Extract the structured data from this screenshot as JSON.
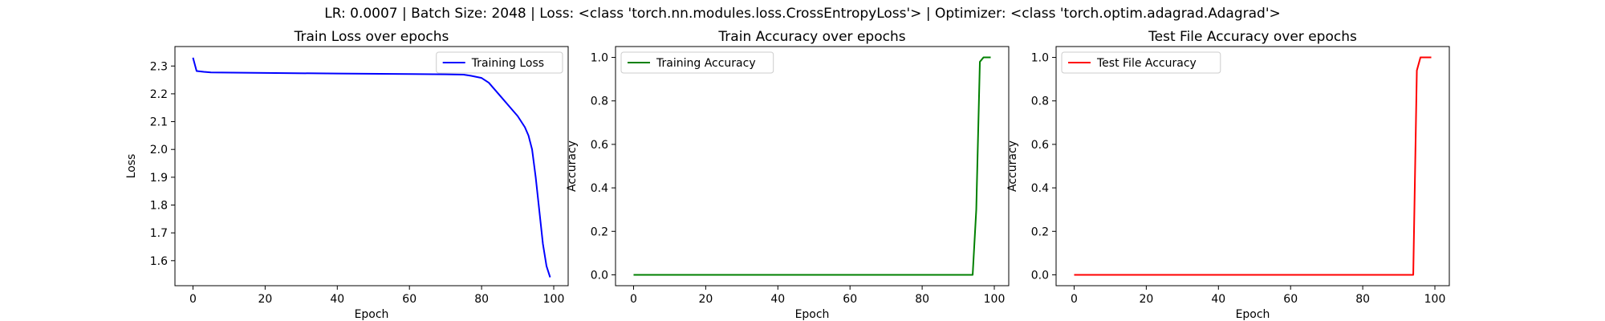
{
  "figure": {
    "suptitle": "LR: 0.0007 | Batch Size: 2048 | Loss: <class 'torch.nn.modules.loss.CrossEntropyLoss'> | Optimizer: <class 'torch.optim.adagrad.Adagrad'>"
  },
  "chart_data": [
    {
      "type": "line",
      "title": "Train Loss over epochs",
      "xlabel": "Epoch",
      "ylabel": "Loss",
      "xlim": [
        -5,
        104
      ],
      "ylim": [
        1.51,
        2.37
      ],
      "xticks": [
        0,
        20,
        40,
        60,
        80,
        100
      ],
      "yticks": [
        1.6,
        1.7,
        1.8,
        1.9,
        2.0,
        2.1,
        2.2,
        2.3
      ],
      "grid": false,
      "legend": "upper right",
      "series": [
        {
          "name": "Training Loss",
          "color": "#0000ff",
          "points": [
            [
              0,
              2.33
            ],
            [
              1,
              2.282
            ],
            [
              3,
              2.279
            ],
            [
              5,
              2.277
            ],
            [
              20,
              2.275
            ],
            [
              40,
              2.273
            ],
            [
              60,
              2.271
            ],
            [
              70,
              2.27
            ],
            [
              75,
              2.269
            ],
            [
              77,
              2.265
            ],
            [
              80,
              2.257
            ],
            [
              82,
              2.24
            ],
            [
              84,
              2.21
            ],
            [
              86,
              2.18
            ],
            [
              88,
              2.15
            ],
            [
              90,
              2.12
            ],
            [
              92,
              2.08
            ],
            [
              93,
              2.05
            ],
            [
              94,
              2.0
            ],
            [
              95,
              1.9
            ],
            [
              96,
              1.78
            ],
            [
              97,
              1.66
            ],
            [
              98,
              1.58
            ],
            [
              99,
              1.54
            ]
          ]
        }
      ]
    },
    {
      "type": "line",
      "title": "Train Accuracy over epochs",
      "xlabel": "Epoch",
      "ylabel": "Accuracy",
      "xlim": [
        -5,
        104
      ],
      "ylim": [
        -0.05,
        1.05
      ],
      "xticks": [
        0,
        20,
        40,
        60,
        80,
        100
      ],
      "yticks": [
        0.0,
        0.2,
        0.4,
        0.6,
        0.8,
        1.0
      ],
      "grid": false,
      "legend": "upper left",
      "series": [
        {
          "name": "Training Accuracy",
          "color": "#008000",
          "points": [
            [
              0,
              0.0
            ],
            [
              20,
              0.0
            ],
            [
              40,
              0.0
            ],
            [
              60,
              0.0
            ],
            [
              80,
              0.0
            ],
            [
              94,
              0.0
            ],
            [
              95,
              0.3
            ],
            [
              96,
              0.98
            ],
            [
              97,
              1.0
            ],
            [
              98,
              1.0
            ],
            [
              99,
              1.0
            ]
          ]
        }
      ]
    },
    {
      "type": "line",
      "title": "Test File Accuracy over epochs",
      "xlabel": "Epoch",
      "ylabel": "Accuracy",
      "xlim": [
        -5,
        104
      ],
      "ylim": [
        -0.05,
        1.05
      ],
      "xticks": [
        0,
        20,
        40,
        60,
        80,
        100
      ],
      "yticks": [
        0.0,
        0.2,
        0.4,
        0.6,
        0.8,
        1.0
      ],
      "grid": false,
      "legend": "upper left",
      "series": [
        {
          "name": "Test File Accuracy",
          "color": "#ff0000",
          "points": [
            [
              0,
              0.0
            ],
            [
              20,
              0.0
            ],
            [
              40,
              0.0
            ],
            [
              60,
              0.0
            ],
            [
              80,
              0.0
            ],
            [
              94,
              0.0
            ],
            [
              95,
              0.94
            ],
            [
              96,
              1.0
            ],
            [
              97,
              1.0
            ],
            [
              98,
              1.0
            ],
            [
              99,
              1.0
            ]
          ]
        }
      ]
    }
  ]
}
